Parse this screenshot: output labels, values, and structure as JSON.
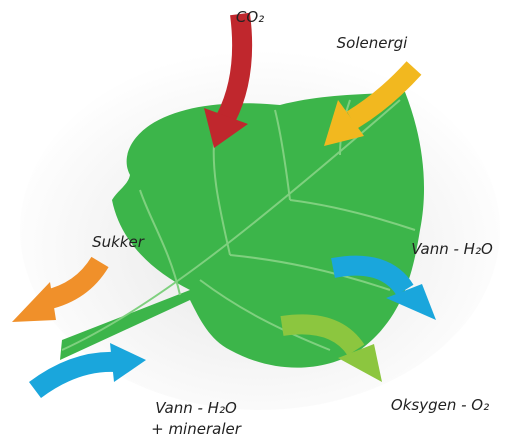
{
  "labels": {
    "co2": "CO₂",
    "sun": "Solenergi",
    "sugar": "Sukker",
    "water_out": "Vann - H₂O",
    "water_in": [
      "Vann - H₂O",
      "+ mineraler"
    ],
    "oxygen": "Oksygen - O₂"
  }
}
